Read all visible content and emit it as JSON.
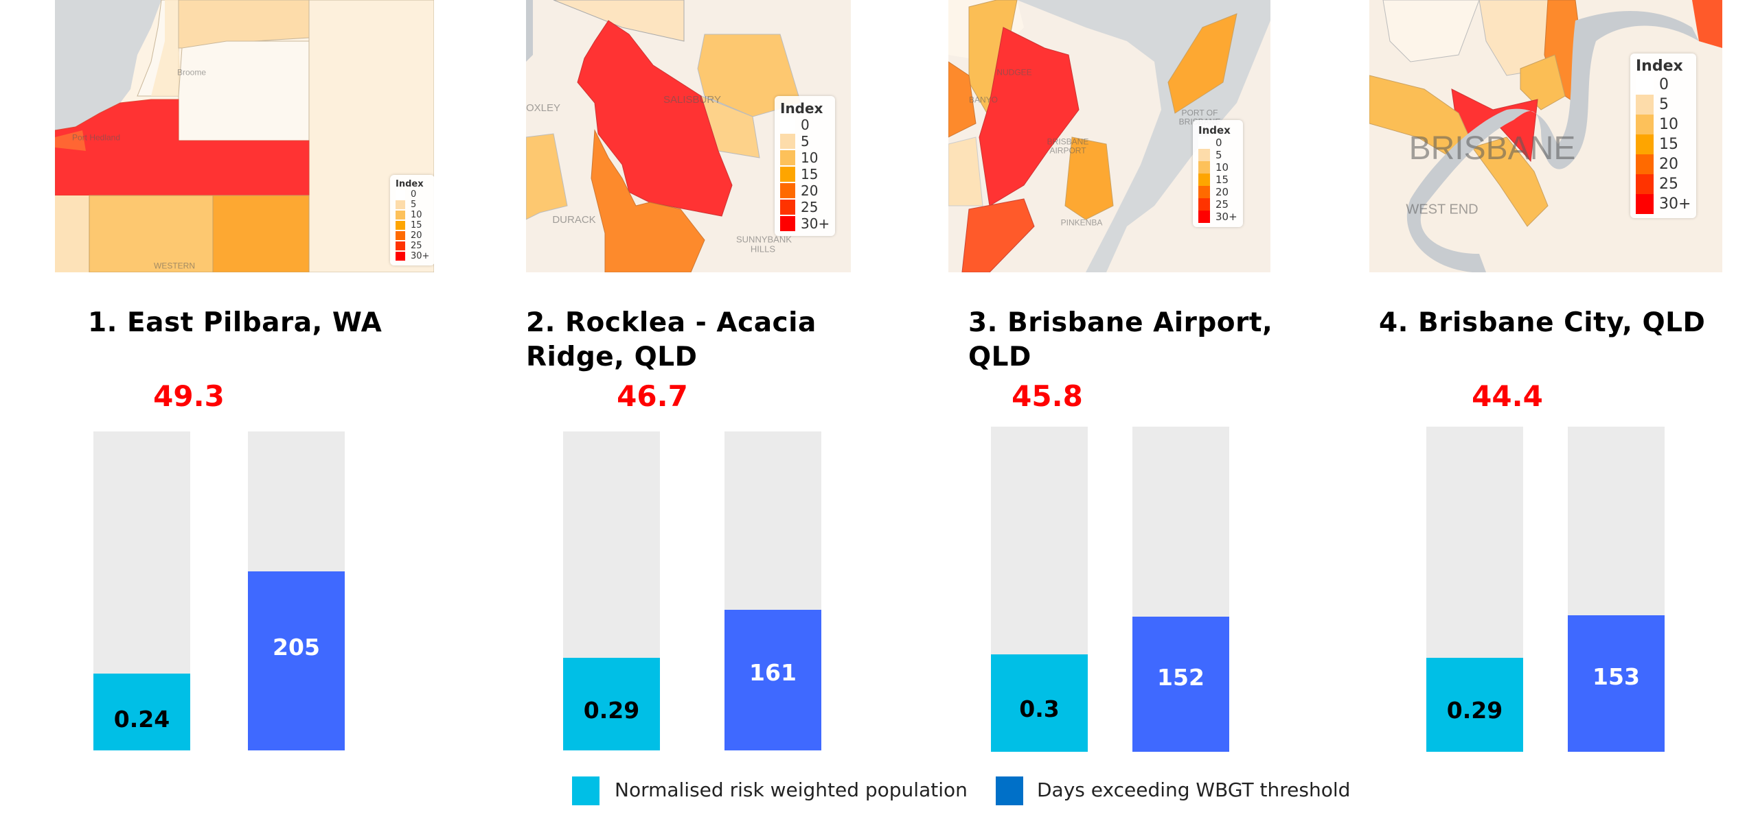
{
  "chart_data": {
    "type": "bar",
    "categories": [
      "1. East Pilbara, WA",
      "2. Rocklea - Acacia Ridge, QLD",
      "3. Brisbane Airport, QLD",
      "4. Brisbane City, QLD"
    ],
    "scores": [
      "49.3",
      "46.7",
      "45.8",
      "44.4"
    ],
    "series": [
      {
        "name": "Normalised risk weighted population",
        "values": [
          0.24,
          0.29,
          0.3,
          0.29
        ],
        "labels": [
          "0.24",
          "0.29",
          "0.3",
          "0.29"
        ],
        "max": 1,
        "color": "#00bfe6",
        "label_color": "#000000"
      },
      {
        "name": "Days exceeding WBGT threshold",
        "values": [
          205,
          161,
          152,
          153
        ],
        "labels": [
          "205",
          "161",
          "152",
          "153"
        ],
        "max": 365,
        "color": "#3f69ff",
        "legend_color": "#0070c8",
        "label_color": "#ffffff"
      }
    ],
    "track_color": "#ebebeb",
    "score_color": "#ff0000",
    "legend_placement": "bottom"
  },
  "map_legend": {
    "title": "Index",
    "labels": [
      "0",
      "5",
      "10",
      "15",
      "20",
      "25",
      "30+"
    ],
    "colors": [
      "#ffffff",
      "#fddcaa",
      "#fdc15a",
      "#fea500",
      "#ff6a00",
      "#ff3300",
      "#ff0000"
    ]
  },
  "map_labels": {
    "m1": [
      "Broome",
      "Port Hedland",
      "WESTERN"
    ],
    "m2": [
      "OXLEY",
      "SALISBURY",
      "DURACK",
      "SUNNYBANK HILLS"
    ],
    "m3": [
      "NUDGEE",
      "BANYO",
      "PORT OF BRISBANE",
      "BRISBANE AIRPORT",
      "PINKENBA"
    ],
    "m4": [
      "BRISBANE",
      "WEST END"
    ]
  }
}
